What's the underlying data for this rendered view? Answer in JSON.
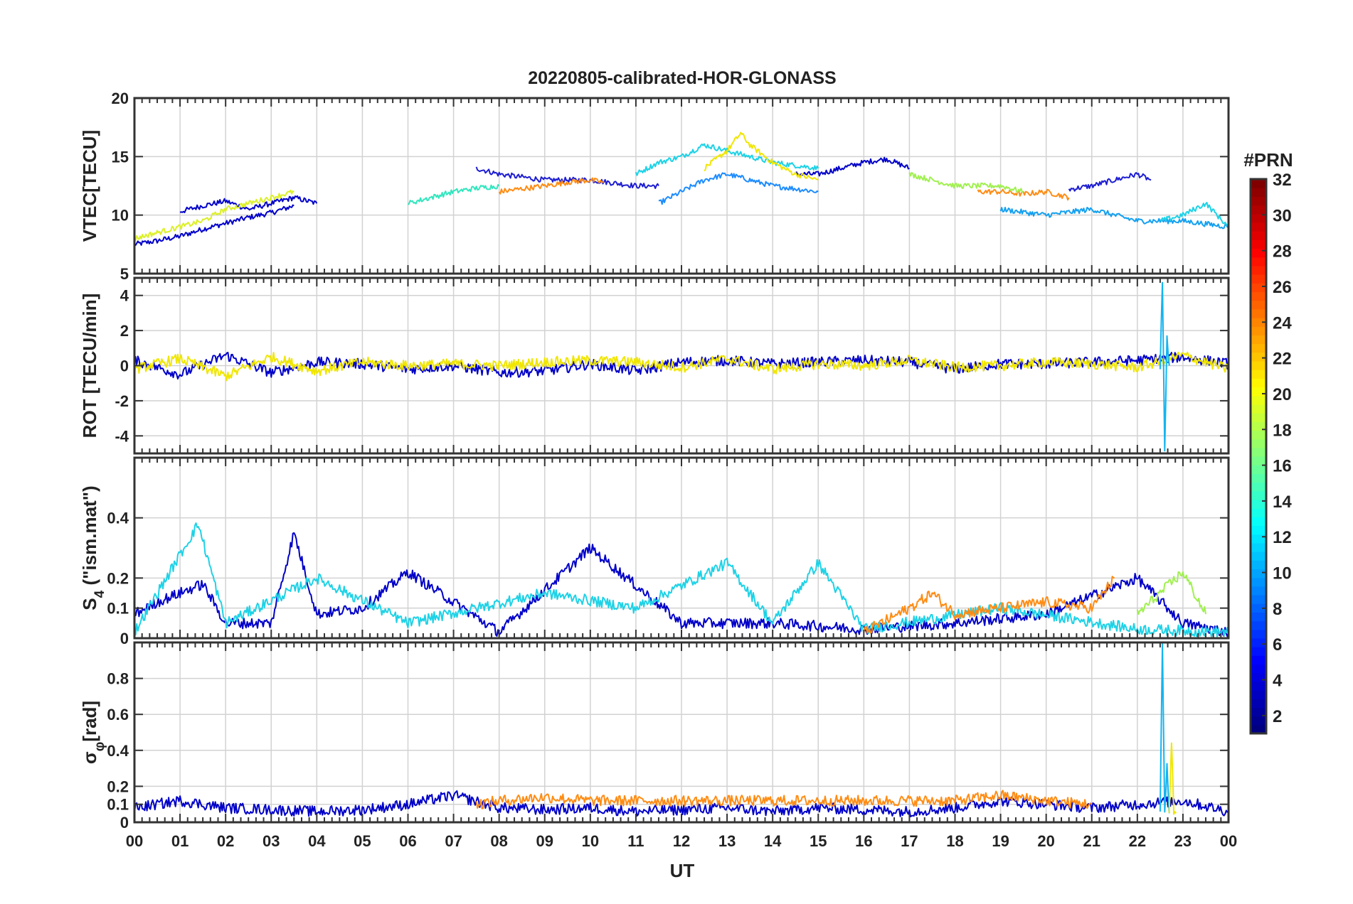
{
  "chart_data": {
    "type": "line",
    "title": "20220805-calibrated-HOR-GLONASS",
    "xlabel": "UT",
    "x_tick_labels": [
      "00",
      "01",
      "02",
      "03",
      "04",
      "05",
      "06",
      "07",
      "08",
      "09",
      "10",
      "11",
      "12",
      "13",
      "14",
      "15",
      "16",
      "17",
      "18",
      "19",
      "20",
      "21",
      "22",
      "23",
      "00"
    ],
    "xlim": [
      0,
      24
    ],
    "grid": true,
    "colorbar": {
      "label": "#PRN",
      "range": [
        1,
        32
      ],
      "ticks": [
        "2",
        "4",
        "6",
        "8",
        "10",
        "12",
        "14",
        "16",
        "18",
        "20",
        "22",
        "24",
        "26",
        "28",
        "30",
        "32"
      ],
      "colormap": "jet",
      "placement": "right"
    },
    "panels": [
      {
        "ylabel": "VTEC[TECU]",
        "ylim": [
          5,
          20
        ],
        "yticks": [
          5,
          10,
          15,
          20
        ],
        "series": [
          {
            "prn": 2,
            "color": "#0000c8",
            "x": [
              0,
              0.5,
              1,
              1.5,
              2,
              2.5,
              3,
              3.5
            ],
            "y": [
              7.5,
              7.8,
              8.2,
              8.8,
              9.3,
              9.8,
              10.2,
              10.8
            ]
          },
          {
            "prn": 2,
            "color": "#0000c8",
            "x": [
              1.0,
              1.5,
              2.0,
              2.5,
              3.0,
              3.5,
              4.0
            ],
            "y": [
              10.3,
              10.8,
              11.2,
              10.5,
              11.0,
              11.5,
              11.0
            ]
          },
          {
            "prn": 3,
            "color": "#1e1ed2",
            "x": [
              7.5,
              8.0,
              9.0,
              10.0,
              11.0,
              11.5
            ],
            "y": [
              14.0,
              13.5,
              13.0,
              13.0,
              12.5,
              12.5
            ]
          },
          {
            "prn": 2,
            "color": "#0000c8",
            "x": [
              14.5,
              15.0,
              15.5,
              16.0,
              16.5,
              17.0
            ],
            "y": [
              13.5,
              13.5,
              14.0,
              14.5,
              14.8,
              14.0
            ]
          },
          {
            "prn": 3,
            "color": "#1e1ed2",
            "x": [
              20.5,
              21.0,
              21.5,
              22.0,
              22.3
            ],
            "y": [
              12.2,
              12.5,
              13.0,
              13.5,
              13.0
            ]
          },
          {
            "prn": 9,
            "color": "#1e8cff",
            "x": [
              11.5,
              12.0,
              12.5,
              13.0,
              13.5,
              14.0,
              15.0
            ],
            "y": [
              11.0,
              12.0,
              13.0,
              13.5,
              13.0,
              12.5,
              12.0
            ]
          },
          {
            "prn": 12,
            "color": "#1ed2e6",
            "x": [
              11.0,
              11.5,
              12.0,
              12.5,
              13.0,
              13.5,
              14.0,
              15.0
            ],
            "y": [
              13.5,
              14.5,
              15.0,
              16.0,
              15.5,
              15.0,
              14.5,
              14.0
            ]
          },
          {
            "prn": 20,
            "color": "#f0e600",
            "x": [
              12.5,
              13.0,
              13.3,
              13.5,
              14.0,
              14.5,
              15.0
            ],
            "y": [
              14.0,
              15.5,
              17.0,
              16.0,
              14.5,
              13.5,
              13.0
            ]
          },
          {
            "prn": 23,
            "color": "#ff8c14",
            "x": [
              8.0,
              9.0,
              9.5,
              10.0,
              10.3
            ],
            "y": [
              12.0,
              12.5,
              12.8,
              13.0,
              12.8
            ]
          },
          {
            "prn": 23,
            "color": "#ff8c14",
            "x": [
              18.5,
              19.0,
              19.5,
              20.0,
              20.5
            ],
            "y": [
              12.0,
              12.0,
              11.8,
              12.0,
              11.5
            ]
          },
          {
            "prn": 13,
            "color": "#32e6be",
            "x": [
              6.0,
              6.5,
              7.0,
              7.5,
              8.0
            ],
            "y": [
              11.0,
              11.5,
              12.0,
              12.3,
              12.5
            ]
          },
          {
            "prn": 17,
            "color": "#a0f050",
            "x": [
              17.0,
              17.5,
              18.0,
              18.5,
              19.0,
              19.5
            ],
            "y": [
              13.5,
              13.0,
              12.5,
              12.5,
              12.5,
              12.0
            ]
          },
          {
            "prn": 10,
            "color": "#14a0f0",
            "x": [
              19.0,
              20.0,
              21.0,
              22.0,
              23.0,
              24.0
            ],
            "y": [
              10.5,
              10.0,
              10.5,
              9.5,
              9.5,
              9.0
            ]
          },
          {
            "prn": 19,
            "color": "#dcf028",
            "x": [
              0,
              0.5,
              1.0,
              1.5,
              2.0,
              2.5,
              3.0,
              3.5
            ],
            "y": [
              8.0,
              8.5,
              9.0,
              9.5,
              10.5,
              11.0,
              11.5,
              12.0
            ]
          },
          {
            "prn": 12,
            "color": "#1ed2e6",
            "x": [
              22.5,
              23.0,
              23.5,
              24.0
            ],
            "y": [
              9.5,
              10.0,
              11.0,
              9.0
            ]
          }
        ]
      },
      {
        "ylabel": "ROT [TECU/min]",
        "ylim": [
          -5,
          5
        ],
        "yticks": [
          -4,
          -2,
          0,
          2,
          4
        ],
        "series": [
          {
            "prn": 2,
            "color": "#0000c8",
            "x": [
              0,
              1,
              2,
              3,
              4,
              5,
              6,
              7,
              8,
              9,
              10,
              11,
              12,
              13,
              14,
              15,
              16,
              17,
              18,
              19,
              20,
              21,
              22,
              23,
              24
            ],
            "y": [
              0.3,
              -0.5,
              0.6,
              -0.4,
              0.2,
              0.1,
              -0.2,
              0.0,
              -0.4,
              -0.3,
              0.1,
              -0.3,
              0.2,
              0.3,
              0.1,
              0.2,
              0.3,
              0.2,
              -0.2,
              0.1,
              0.1,
              0.2,
              0.3,
              0.5,
              0.1
            ]
          },
          {
            "prn": 20,
            "color": "#f0e600",
            "x": [
              0,
              1,
              2,
              3,
              4,
              5,
              6,
              7,
              8,
              9,
              10,
              11,
              12,
              13,
              14,
              15,
              16,
              17,
              18,
              19,
              20,
              21,
              22,
              23,
              24
            ],
            "y": [
              -0.2,
              0.4,
              -0.6,
              0.5,
              -0.3,
              0.2,
              0.0,
              0.1,
              0.0,
              0.2,
              0.3,
              0.2,
              -0.1,
              0.4,
              -0.2,
              0.1,
              0.0,
              0.3,
              -0.1,
              0.0,
              0.2,
              0.1,
              -0.1,
              0.6,
              -0.2
            ]
          },
          {
            "prn": 11,
            "color": "#14b4f0",
            "x": [
              22.5,
              22.55,
              22.6,
              22.65,
              22.7
            ],
            "y": [
              0.0,
              4.9,
              -5.0,
              1.5,
              0.0
            ]
          }
        ]
      },
      {
        "ylabel": "S4 (\"ism.mat\")",
        "ylabel_main": "S",
        "ylabel_sub": "4",
        "ylabel_rest": " (\"ism.mat\")",
        "ylim": [
          0,
          0.6
        ],
        "yticks": [
          0,
          0.1,
          0.2,
          0.4
        ],
        "series": [
          {
            "prn": 2,
            "color": "#0000c8",
            "x": [
              0,
              0.5,
              1.0,
              1.5,
              2.0,
              3.0,
              3.5,
              4.0,
              5.0,
              6.0,
              8.0,
              10.0,
              12.0,
              14.0,
              16.0,
              18.0,
              20.0,
              22.0,
              23.0,
              24.0
            ],
            "y": [
              0.08,
              0.12,
              0.15,
              0.18,
              0.05,
              0.05,
              0.35,
              0.08,
              0.1,
              0.22,
              0.02,
              0.3,
              0.05,
              0.05,
              0.03,
              0.05,
              0.08,
              0.2,
              0.05,
              0.02
            ]
          },
          {
            "prn": 12,
            "color": "#1ed2e6",
            "x": [
              0,
              1.4,
              2.0,
              4.0,
              6.0,
              9.0,
              11.0,
              13.0,
              14.0,
              15.0,
              16.0,
              19.0,
              22.0,
              24.0
            ],
            "y": [
              0.02,
              0.38,
              0.05,
              0.2,
              0.05,
              0.15,
              0.1,
              0.25,
              0.05,
              0.25,
              0.03,
              0.1,
              0.03,
              0.02
            ]
          },
          {
            "prn": 23,
            "color": "#ff8c14",
            "x": [
              16.0,
              17.0,
              17.5,
              18.0,
              19.0,
              20.0,
              21.0,
              21.5
            ],
            "y": [
              0.02,
              0.1,
              0.15,
              0.08,
              0.1,
              0.12,
              0.1,
              0.2
            ]
          },
          {
            "prn": 17,
            "color": "#a0f050",
            "x": [
              22.0,
              22.5,
              23.0,
              23.5
            ],
            "y": [
              0.08,
              0.15,
              0.22,
              0.08
            ]
          }
        ]
      },
      {
        "ylabel": "σφ[rad]",
        "ylabel_main": "σ",
        "ylabel_sub": "φ",
        "ylabel_rest": "[rad]",
        "ylim": [
          0,
          1.0
        ],
        "yticks": [
          0,
          0.1,
          0.2,
          0.4,
          0.6,
          0.8
        ],
        "series": [
          {
            "prn": 2,
            "color": "#0000c8",
            "x": [
              0,
              1,
              2,
              3,
              4,
              5,
              6,
              7,
              8,
              9,
              10,
              11,
              12,
              13,
              14,
              15,
              16,
              17,
              18,
              19,
              20,
              21,
              22,
              23,
              24
            ],
            "y": [
              0.08,
              0.12,
              0.08,
              0.07,
              0.06,
              0.07,
              0.1,
              0.15,
              0.08,
              0.07,
              0.08,
              0.06,
              0.07,
              0.08,
              0.06,
              0.08,
              0.07,
              0.06,
              0.08,
              0.12,
              0.1,
              0.08,
              0.1,
              0.12,
              0.06
            ]
          },
          {
            "prn": 23,
            "color": "#ff8c14",
            "x": [
              7.5,
              8.0,
              9.0,
              10.0,
              18.0,
              19.0,
              20.0,
              21.0
            ],
            "y": [
              0.1,
              0.12,
              0.14,
              0.12,
              0.12,
              0.15,
              0.12,
              0.1
            ]
          },
          {
            "prn": 11,
            "color": "#14b4f0",
            "x": [
              22.5,
              22.55,
              22.6,
              22.65,
              22.7
            ],
            "y": [
              0.05,
              0.98,
              0.05,
              0.3,
              0.05
            ]
          },
          {
            "prn": 20,
            "color": "#f0e600",
            "x": [
              22.7,
              22.75,
              22.8,
              22.85
            ],
            "y": [
              0.05,
              0.47,
              0.05,
              0.05
            ]
          }
        ]
      }
    ]
  }
}
